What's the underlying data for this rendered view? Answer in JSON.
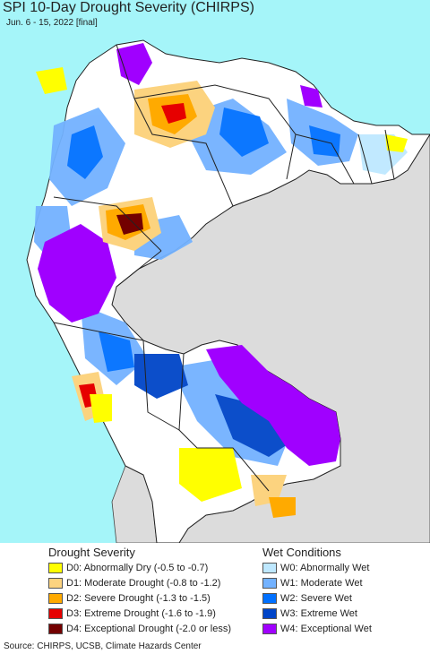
{
  "title": "SPI 10-Day Drought Severity (CHIRPS)",
  "subtitle": "Jun. 6 - 15, 2022 [final]",
  "legend": {
    "drought_title": "Drought Severity",
    "wet_title": "Wet Conditions",
    "drought": [
      {
        "label": "D0: Abnormally Dry (-0.5 to -0.7)",
        "color": "#ffff00"
      },
      {
        "label": "D1: Moderate Drought (-0.8 to -1.2)",
        "color": "#fcd37f"
      },
      {
        "label": "D2: Severe Drought (-1.3 to -1.5)",
        "color": "#ffaa00"
      },
      {
        "label": "D3: Extreme Drought (-1.6 to -1.9)",
        "color": "#e60000"
      },
      {
        "label": "D4: Exceptional Drought (-2.0 or less)",
        "color": "#730000"
      }
    ],
    "wet": [
      {
        "label": "W0: Abnormally Wet",
        "color": "#bee8ff"
      },
      {
        "label": "W1: Moderate Wet",
        "color": "#73b2ff"
      },
      {
        "label": "W2: Severe Wet",
        "color": "#0070ff"
      },
      {
        "label": "W3: Extreme Wet",
        "color": "#0045c8"
      },
      {
        "label": "W4: Exceptional Wet",
        "color": "#a000ff"
      }
    ]
  },
  "source": "Source: CHIRPS, UCSB, Climate Hazards Center",
  "colors": {
    "ocean": "#a5f5f9",
    "out_of_region_land": "#dcdcdc",
    "region_land": "#ffffff",
    "borders": "#222222"
  }
}
